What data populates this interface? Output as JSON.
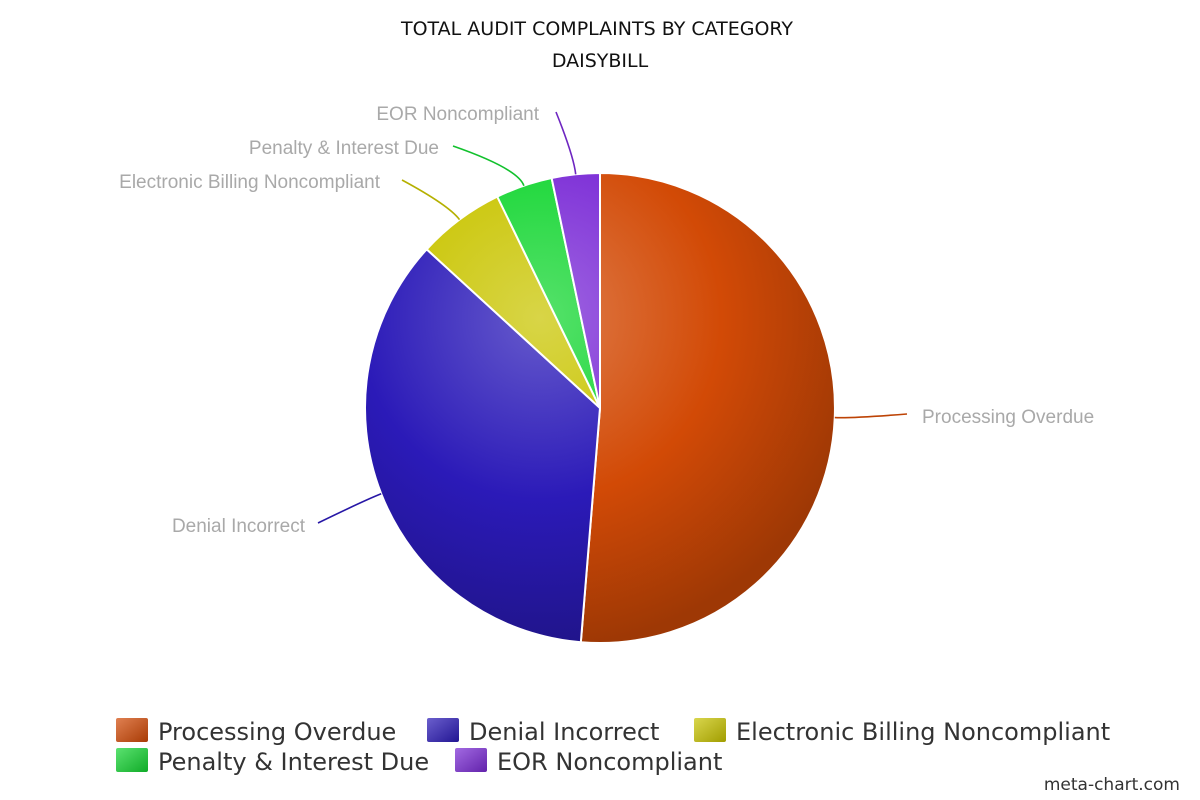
{
  "chart_data": {
    "type": "pie",
    "title": "TOTAL AUDIT COMPLAINTS BY CATEGORY",
    "subtitle": "DAISYBILL",
    "categories": [
      "Processing Overdue",
      "Denial Incorrect",
      "Electronic Billing Noncompliant",
      "Penalty & Interest Due",
      "EOR Noncompliant"
    ],
    "values": [
      51.3,
      35.5,
      6.0,
      3.9,
      3.3
    ],
    "value_unit": "percent (estimated)",
    "colors": [
      "#d24a06",
      "#2b1ab8",
      "#c9c400",
      "#14d632",
      "#7a2ad6"
    ],
    "legend_position": "bottom"
  },
  "credit": "meta-chart.com"
}
